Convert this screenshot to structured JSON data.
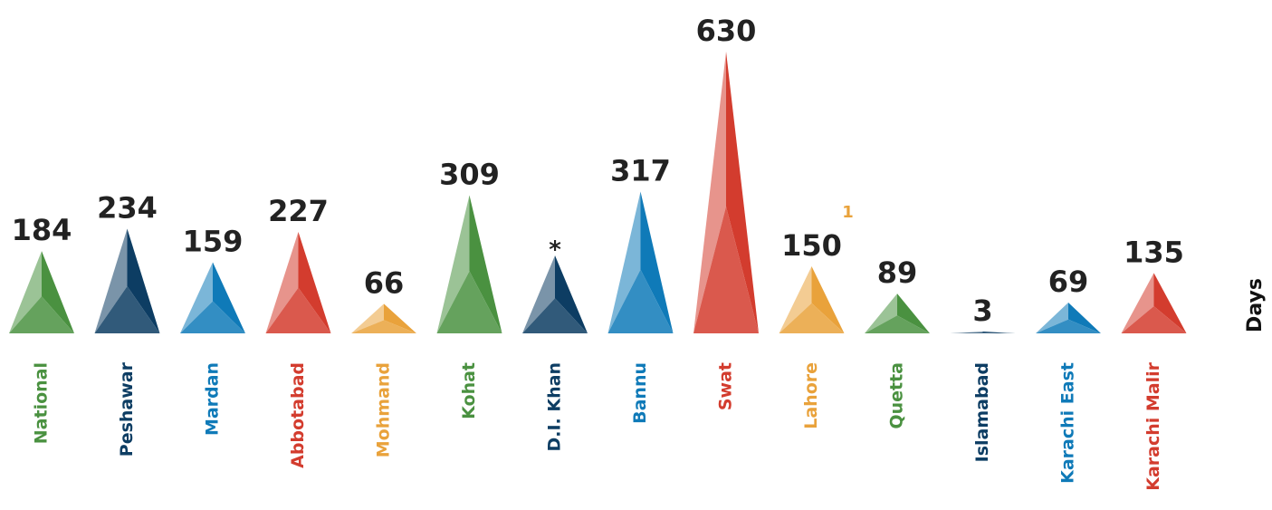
{
  "chart_data": {
    "type": "bar",
    "style": "triangular pyramid bars",
    "ylabel": "Days",
    "ylim": [
      0,
      630
    ],
    "categories": [
      "National",
      "Peshawar",
      "Mardan",
      "Abbotabad",
      "Mohmand",
      "Kohat",
      "D.I. Khan",
      "Bannu",
      "Swat",
      "Lahore",
      "Quetta",
      "Islamabad",
      "Karachi East",
      "Karachi Malir"
    ],
    "values": [
      184,
      234,
      159,
      227,
      66,
      309,
      null,
      317,
      630,
      150,
      89,
      3,
      69,
      135
    ],
    "value_labels": [
      "184",
      "234",
      "159",
      "227",
      "66",
      "309",
      "*",
      "317",
      "630",
      "150",
      "89",
      "3",
      "69",
      "135"
    ],
    "footnote_marks": [
      "",
      "",
      "",
      "",
      "",
      "",
      "",
      "",
      "",
      "1",
      "",
      "",
      "",
      ""
    ],
    "colors": [
      "#4a9140",
      "#0d3d63",
      "#0f7ab8",
      "#d33c2e",
      "#e9a23b",
      "#4a9140",
      "#0d3d63",
      "#0f7ab8",
      "#d33c2e",
      "#e9a23b",
      "#4a9140",
      "#0d3d63",
      "#0f7ab8",
      "#d33c2e"
    ],
    "value_label_color": "#222222",
    "footnote_color": "#e9a23b",
    "grid": false,
    "legend": "none"
  }
}
